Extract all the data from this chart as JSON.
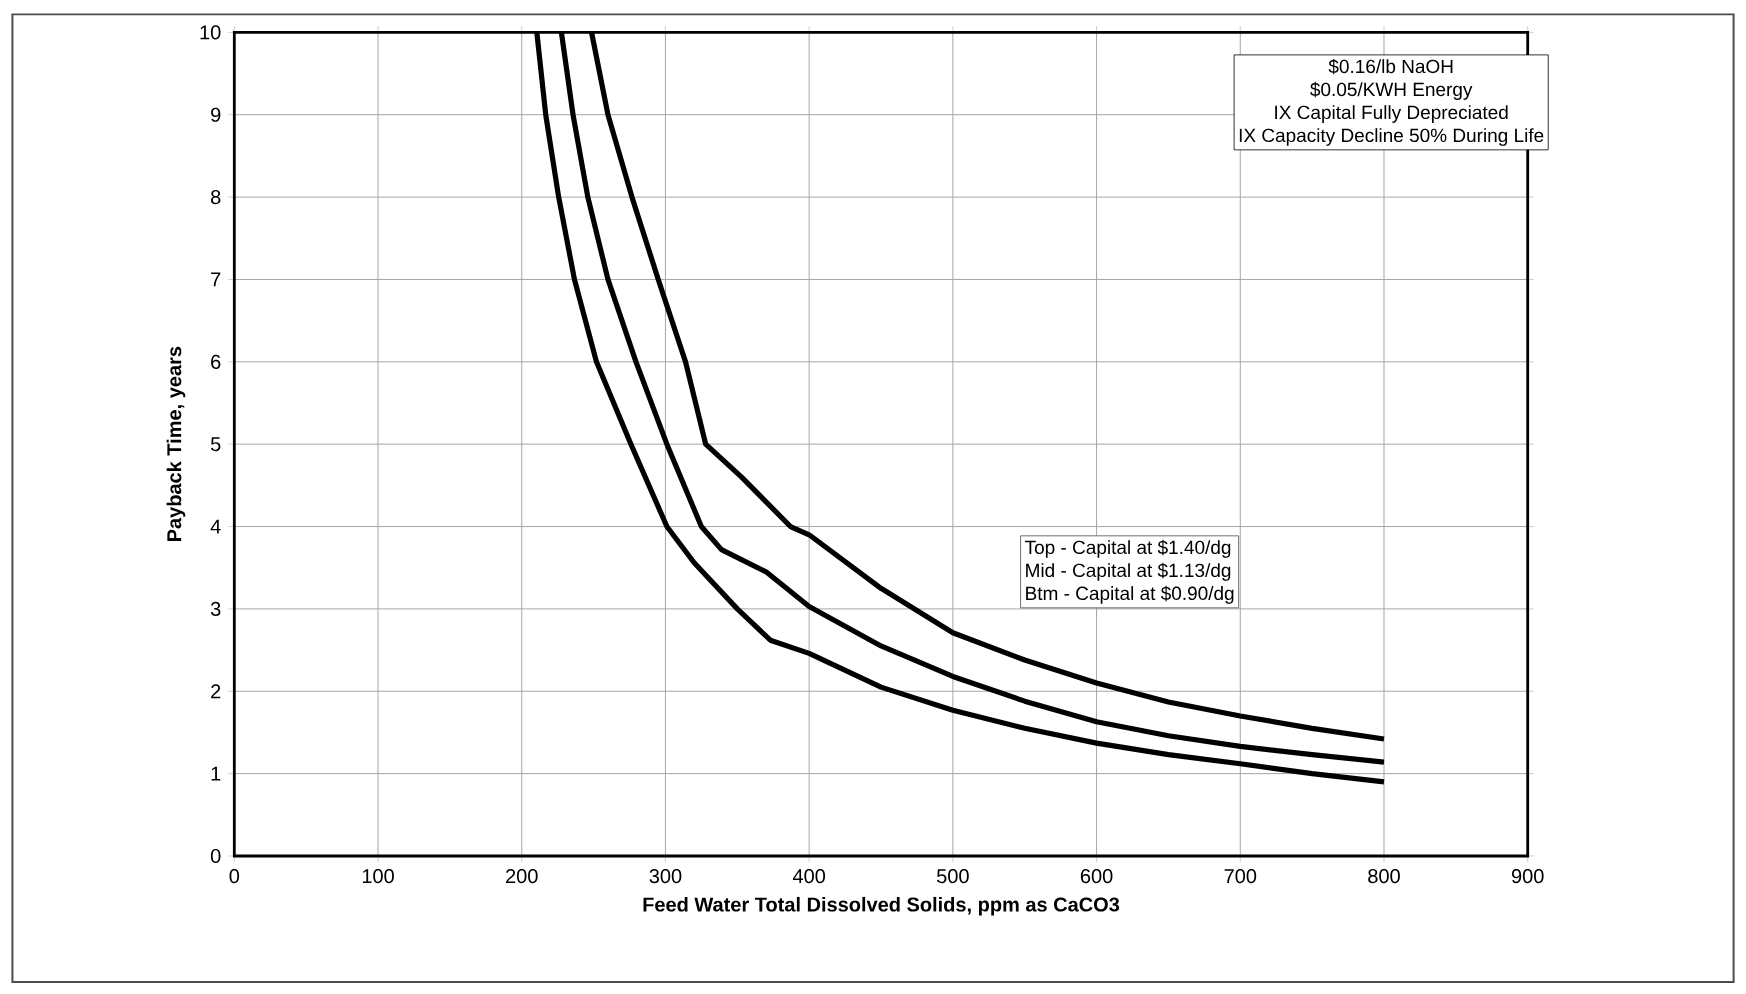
{
  "chart_data": {
    "type": "line",
    "xlabel": "Feed Water Total Dissolved Solids, ppm as CaCO3",
    "ylabel": "Payback Time, years",
    "annotations": [
      "$0.16/lb NaOH",
      "$0.05/KWH Energy",
      "IX Capital Fully Depreciated",
      "IX Capacity Decline 50% During Life",
      "Top -    Capital at $1.40/dg",
      "Mid -   Capital at $1.13/dg",
      "Btm  -  Capital at $0.90/dg"
    ],
    "series": [
      {
        "color": "#000000",
        "x": [
          248.6,
          260,
          276.7,
          295,
          314,
          328,
          353,
          387,
          400,
          450,
          500,
          550,
          600,
          650,
          700,
          750,
          800
        ],
        "values": [
          10,
          9,
          8,
          7,
          6,
          5,
          4.6,
          4.0,
          3.9,
          3.25,
          2.71,
          2.38,
          2.1,
          1.87,
          1.7,
          1.55,
          1.42
        ]
      },
      {
        "color": "#000000",
        "x": [
          227.6,
          235.7,
          246,
          260,
          279.5,
          301,
          325,
          339,
          370,
          400,
          450,
          500,
          550,
          600,
          650,
          700,
          750,
          800
        ],
        "values": [
          10,
          9,
          8,
          7,
          6,
          5,
          4,
          3.72,
          3.45,
          3.03,
          2.55,
          2.18,
          1.88,
          1.63,
          1.46,
          1.33,
          1.23,
          1.14
        ]
      },
      {
        "color": "#000000",
        "x": [
          210.5,
          216.7,
          225.7,
          236.7,
          252,
          276,
          301,
          320,
          350,
          373,
          400,
          450,
          500,
          550,
          600,
          650,
          700,
          750,
          800
        ],
        "values": [
          10,
          9,
          8,
          7,
          6,
          5,
          4,
          3.56,
          3.0,
          2.62,
          2.46,
          2.05,
          1.77,
          1.55,
          1.37,
          1.23,
          1.12,
          1.0,
          0.9
        ]
      }
    ],
    "xlim": [
      0,
      900
    ],
    "ylim": [
      0,
      10
    ],
    "xticks": [
      0,
      100,
      200,
      300,
      400,
      500,
      600,
      700,
      800,
      900
    ],
    "yticks": [
      0,
      1,
      2,
      3,
      4,
      5,
      6,
      7,
      8,
      9,
      10
    ],
    "grid": true,
    "marker": "none",
    "line_style": "solid"
  }
}
